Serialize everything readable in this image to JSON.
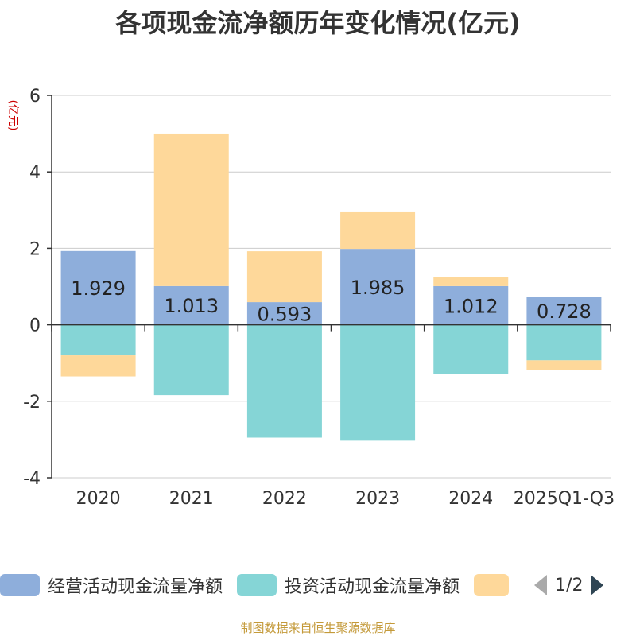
{
  "chart_data": {
    "type": "bar",
    "stacked": true,
    "title": "各项现金流净额历年变化情况(亿元)",
    "ylabel": "(亿元)",
    "xlabel": "",
    "ylim": [
      -4,
      6
    ],
    "yticks": [
      6,
      4,
      2,
      0,
      -2,
      -4
    ],
    "categories": [
      "2020",
      "2021",
      "2022",
      "2023",
      "2024",
      "2025Q1-Q3"
    ],
    "series": [
      {
        "name": "经营活动现金流量净额",
        "color": "#8eaedb",
        "values": [
          1.929,
          1.013,
          0.593,
          1.985,
          1.012,
          0.728
        ]
      },
      {
        "name": "投资活动现金流量净额",
        "color": "#85d5d6",
        "values": [
          -0.8,
          -1.84,
          -2.95,
          -3.03,
          -1.29,
          -0.93
        ]
      },
      {
        "name": "",
        "color": "#fed89a",
        "values": [
          -0.55,
          3.99,
          1.33,
          0.96,
          0.23,
          -0.25
        ]
      }
    ],
    "data_labels": [
      "1.929",
      "1.013",
      "0.593",
      "1.985",
      "1.012",
      "0.728"
    ]
  },
  "legend": {
    "items": [
      {
        "label": "经营活动现金流量净额",
        "color": "#8eaedb"
      },
      {
        "label": "投资活动现金流量净额",
        "color": "#85d5d6"
      },
      {
        "label": "",
        "color": "#fed89a"
      }
    ],
    "page": "1/2"
  },
  "source": "制图数据来自恒生聚源数据库"
}
